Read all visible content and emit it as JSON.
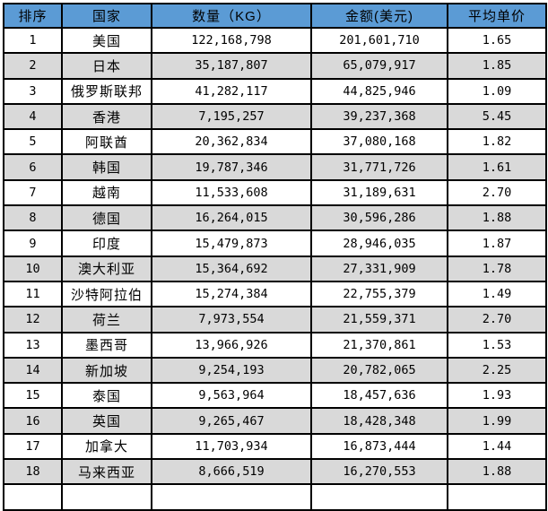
{
  "page": {
    "background": "#FFFFFF"
  },
  "table": {
    "header_bg": "#5B9BD5",
    "row_alt_bg": "#D9D9D9",
    "border_color": "#000000",
    "headers": [
      "排序",
      "国家",
      "数量（KG）",
      "金额(美元)",
      "平均单价"
    ],
    "rows": [
      [
        "1",
        "美国",
        "122,168,798",
        "201,601,710",
        "1.65"
      ],
      [
        "2",
        "日本",
        "35,187,807",
        "65,079,917",
        "1.85"
      ],
      [
        "3",
        "俄罗斯联邦",
        "41,282,117",
        "44,825,946",
        "1.09"
      ],
      [
        "4",
        "香港",
        "7,195,257",
        "39,237,368",
        "5.45"
      ],
      [
        "5",
        "阿联酋",
        "20,362,834",
        "37,080,168",
        "1.82"
      ],
      [
        "6",
        "韩国",
        "19,787,346",
        "31,771,726",
        "1.61"
      ],
      [
        "7",
        "越南",
        "11,533,608",
        "31,189,631",
        "2.70"
      ],
      [
        "8",
        "德国",
        "16,264,015",
        "30,596,286",
        "1.88"
      ],
      [
        "9",
        "印度",
        "15,479,873",
        "28,946,035",
        "1.87"
      ],
      [
        "10",
        "澳大利亚",
        "15,364,692",
        "27,331,909",
        "1.78"
      ],
      [
        "11",
        "沙特阿拉伯",
        "15,274,384",
        "22,755,379",
        "1.49"
      ],
      [
        "12",
        "荷兰",
        "7,973,554",
        "21,559,371",
        "2.70"
      ],
      [
        "13",
        "墨西哥",
        "13,966,926",
        "21,370,861",
        "1.53"
      ],
      [
        "14",
        "新加坡",
        "9,254,193",
        "20,782,065",
        "2.25"
      ],
      [
        "15",
        "泰国",
        "9,563,964",
        "18,457,636",
        "1.93"
      ],
      [
        "16",
        "英国",
        "9,265,467",
        "18,428,348",
        "1.99"
      ],
      [
        "17",
        "加拿大",
        "11,703,934",
        "16,873,444",
        "1.44"
      ],
      [
        "18",
        "马来西亚",
        "8,666,519",
        "16,270,553",
        "1.88"
      ]
    ]
  },
  "chart_data": {
    "type": "table",
    "columns": [
      "排序",
      "国家",
      "数量（KG）",
      "金额(美元)",
      "平均单价"
    ],
    "rows": [
      [
        1,
        "美国",
        122168798,
        201601710,
        1.65
      ],
      [
        2,
        "日本",
        35187807,
        65079917,
        1.85
      ],
      [
        3,
        "俄罗斯联邦",
        41282117,
        44825946,
        1.09
      ],
      [
        4,
        "香港",
        7195257,
        39237368,
        5.45
      ],
      [
        5,
        "阿联酋",
        20362834,
        37080168,
        1.82
      ],
      [
        6,
        "韩国",
        19787346,
        31771726,
        1.61
      ],
      [
        7,
        "越南",
        11533608,
        31189631,
        2.7
      ],
      [
        8,
        "德国",
        16264015,
        30596286,
        1.88
      ],
      [
        9,
        "印度",
        15479873,
        28946035,
        1.87
      ],
      [
        10,
        "澳大利亚",
        15364692,
        27331909,
        1.78
      ],
      [
        11,
        "沙特阿拉伯",
        15274384,
        22755379,
        1.49
      ],
      [
        12,
        "荷兰",
        7973554,
        21559371,
        2.7
      ],
      [
        13,
        "墨西哥",
        13966926,
        21370861,
        1.53
      ],
      [
        14,
        "新加坡",
        9254193,
        20782065,
        2.25
      ],
      [
        15,
        "泰国",
        9563964,
        18457636,
        1.93
      ],
      [
        16,
        "英国",
        9265467,
        18428348,
        1.99
      ],
      [
        17,
        "加拿大",
        11703934,
        16873444,
        1.44
      ],
      [
        18,
        "马来西亚",
        8666519,
        16270553,
        1.88
      ]
    ]
  }
}
